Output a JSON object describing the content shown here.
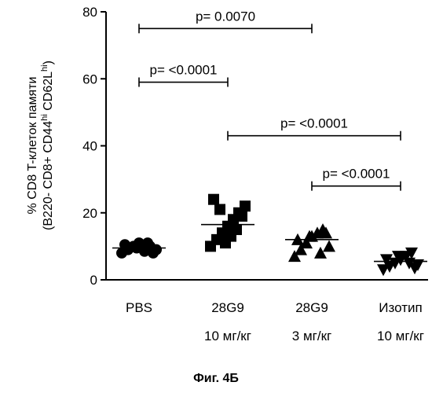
{
  "chart_data": {
    "type": "scatter",
    "ylabel_line1": "% CD8 T-клеток памяти",
    "ylabel_line2_parts": [
      {
        "t": "(B220- CD8+ CD44"
      },
      {
        "t": "hi",
        "sup": true
      },
      {
        "t": " CD62L"
      },
      {
        "t": "hi",
        "sup": true
      },
      {
        "t": ")"
      }
    ],
    "ylim": [
      0,
      80
    ],
    "yticks": [
      0,
      20,
      40,
      60,
      80
    ],
    "categories": [
      {
        "line1": "PBS",
        "line2": ""
      },
      {
        "line1": "28G9",
        "line2": "10 мг/кг"
      },
      {
        "line1": "28G9",
        "line2": "3 мг/кг"
      },
      {
        "line1": "Изотип",
        "line2": "10 мг/кг"
      }
    ],
    "series": [
      {
        "marker": "circle",
        "median": 9.5,
        "values": [
          8,
          9,
          10,
          11,
          8.5,
          10,
          9,
          10.5,
          9.5,
          11,
          8
        ]
      },
      {
        "marker": "square",
        "median": 16.5,
        "values": [
          10,
          12,
          14,
          16,
          18,
          20,
          22,
          24,
          11,
          15,
          19,
          21,
          13
        ]
      },
      {
        "marker": "triangle-up",
        "median": 12,
        "values": [
          7,
          9,
          11,
          13,
          14,
          15,
          10,
          12,
          13,
          8,
          14
        ]
      },
      {
        "marker": "triangle-down",
        "median": 5.5,
        "values": [
          3,
          4,
          5,
          6,
          7,
          8,
          4.5,
          6,
          7,
          5,
          3.5
        ]
      }
    ],
    "comparisons": [
      {
        "from": 0,
        "to": 2,
        "y": 75,
        "label": "p= 0.0070"
      },
      {
        "from": 0,
        "to": 1,
        "y": 59,
        "label": "p= <0.0001"
      },
      {
        "from": 1,
        "to": 3,
        "y": 43,
        "label": "p= <0.0001"
      },
      {
        "from": 2,
        "to": 3,
        "y": 28,
        "label": "p= <0.0001"
      }
    ]
  },
  "caption": "Фиг. 4Б"
}
